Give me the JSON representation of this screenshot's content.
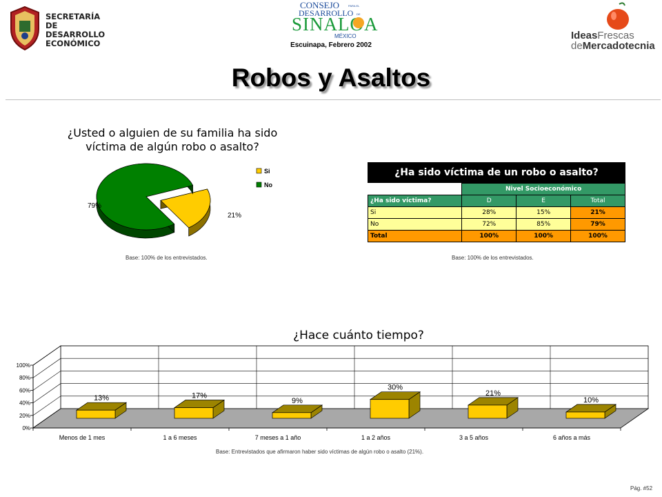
{
  "header": {
    "left_logo_lines": [
      "SECRETARÍA",
      "DE DESARROLLO",
      "ECONÓMICO"
    ],
    "center_logo_lines": [
      "CONSEJO",
      "DESARROLLO",
      "SINALOA",
      "MÉXICO"
    ],
    "center_logo_small": [
      "PARA EL",
      "DE"
    ],
    "subtitle": "Escuinapa, Febrero 2002",
    "right_logo": {
      "ideas": "Ideas",
      "frescas": "Frescas",
      "de": "de",
      "mercadotecnia": "Mercadotecnia"
    }
  },
  "page_title": "Robos y Asaltos",
  "page_number": "Pág. #52",
  "pie_section": {
    "title_line1": "¿Usted o alguien de su familia ha sido",
    "title_line2": "víctima de algún robo o asalto?",
    "base": "Base:  100% de los entrevistados."
  },
  "table_section": {
    "title": "¿Ha sido víctima de un robo o asalto?",
    "group_header": "Nivel Socioeconómico",
    "row_header_label": "¿Ha sido víctima?",
    "columns": [
      "D",
      "E",
      "Total"
    ],
    "rows": [
      {
        "label": "Si",
        "values": [
          "28%",
          "15%",
          "21%"
        ]
      },
      {
        "label": "No",
        "values": [
          "72%",
          "85%",
          "79%"
        ]
      },
      {
        "label": "Total",
        "values": [
          "100%",
          "100%",
          "100%"
        ]
      }
    ],
    "base": "Base:  100% de los entrevistados."
  },
  "bar_section": {
    "base": "Base:  Entrevistados que afirmaron haber sido víctimas de algún robo o asalto (21%)."
  },
  "colors": {
    "pie_si": "#ffcc00",
    "pie_no": "#008000",
    "bar_face": "#ffcc00",
    "bar_side": "#9c8400",
    "floor": "#a8a8a8",
    "table_title_bg": "#000000",
    "table_header_bg": "#339966",
    "table_row_bg": "#ffff99",
    "table_highlight_bg": "#ff9900"
  },
  "chart_data": [
    {
      "type": "pie",
      "title": "¿Usted o alguien de su familia ha sido víctima de algún robo o asalto?",
      "labels": [
        "Si",
        "No"
      ],
      "values": [
        21,
        79
      ],
      "data_labels": [
        "21%",
        "79%"
      ],
      "legend_placement": "right"
    },
    {
      "type": "bar",
      "title": "¿Hace cuánto tiempo?",
      "categories": [
        "Menos de 1 mes",
        "1 a 6 meses",
        "7 meses a 1 año",
        "1 a 2 años",
        "3 a 5 años",
        "6 años a más"
      ],
      "values": [
        13,
        17,
        9,
        30,
        21,
        10
      ],
      "data_labels": [
        "13%",
        "17%",
        "9%",
        "30%",
        "21%",
        "10%"
      ],
      "ylim": [
        0,
        100
      ],
      "yticks": [
        "0%",
        "20%",
        "40%",
        "60%",
        "80%",
        "100%"
      ],
      "grid": true
    }
  ]
}
